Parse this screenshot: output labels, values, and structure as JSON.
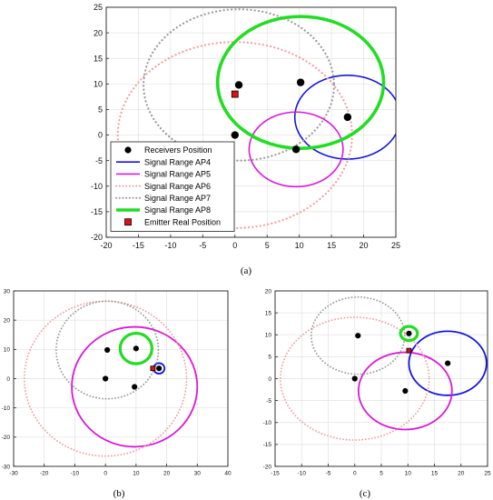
{
  "figure": {
    "captions": [
      "(a)",
      "(b)",
      "(c)"
    ]
  },
  "legend": {
    "entries": [
      {
        "label": "Receivers Position",
        "kind": "dot",
        "color": "#000000"
      },
      {
        "label": "Signal Range AP4",
        "kind": "line",
        "color": "#1515e0"
      },
      {
        "label": "Signal Range AP5",
        "kind": "line",
        "color": "#d81ad8"
      },
      {
        "label": "Signal Range AP6",
        "kind": "dotted",
        "color": "#f0a0a0"
      },
      {
        "label": "Signal Range AP7",
        "kind": "dotted",
        "color": "#9a9a9a"
      },
      {
        "label": "Signal Range AP8",
        "kind": "thick",
        "color": "#22dd22"
      },
      {
        "label": "Emitter Real Position",
        "kind": "square",
        "color": "#dd1111"
      }
    ]
  },
  "chart_data": [
    {
      "type": "scatter",
      "panel": "a",
      "title": "",
      "xlabel": "",
      "ylabel": "",
      "xlim": [
        -20,
        25
      ],
      "ylim": [
        -20,
        25
      ],
      "xticks": [
        -20,
        -15,
        -10,
        -5,
        0,
        5,
        10,
        15,
        20,
        25
      ],
      "yticks": [
        -20,
        -15,
        -10,
        -5,
        0,
        5,
        10,
        15,
        20,
        25
      ],
      "grid": true,
      "legend_position": "bottom-left",
      "receivers": [
        [
          0,
          0
        ],
        [
          0.6,
          9.8
        ],
        [
          10.2,
          10.3
        ],
        [
          17.5,
          3.5
        ],
        [
          9.5,
          -2.8
        ]
      ],
      "emitter": [
        0,
        8
      ],
      "circles": [
        {
          "name": "Signal Range AP4",
          "cx": 17.5,
          "cy": 3.5,
          "r": 8.2,
          "color": "#1515e0",
          "style": "solid"
        },
        {
          "name": "Signal Range AP5",
          "cx": 9.5,
          "cy": -2.8,
          "r": 7.3,
          "color": "#d81ad8",
          "style": "solid"
        },
        {
          "name": "Signal Range AP6",
          "cx": 0,
          "cy": 0,
          "r": 18.2,
          "color": "#f0a0a0",
          "style": "dotted"
        },
        {
          "name": "Signal Range AP7",
          "cx": 0.6,
          "cy": 9.8,
          "r": 14.8,
          "color": "#9a9a9a",
          "style": "dotted"
        },
        {
          "name": "Signal Range AP8",
          "cx": 10.2,
          "cy": 10.3,
          "r": 12.9,
          "color": "#22dd22",
          "style": "thick"
        }
      ]
    },
    {
      "type": "scatter",
      "panel": "b",
      "title": "",
      "xlabel": "",
      "ylabel": "",
      "xlim": [
        -30,
        40
      ],
      "ylim": [
        -30,
        30
      ],
      "xticks": [
        -30,
        -20,
        -10,
        0,
        10,
        20,
        30,
        40
      ],
      "yticks": [
        -30,
        -20,
        -10,
        0,
        10,
        20,
        30
      ],
      "grid": true,
      "receivers": [
        [
          0.6,
          9.8
        ],
        [
          10,
          10.3
        ],
        [
          0,
          0
        ],
        [
          9.5,
          -2.8
        ],
        [
          17.5,
          3.5
        ]
      ],
      "emitter": [
        15.5,
        3.5
      ],
      "circles": [
        {
          "name": "Signal Range AP4",
          "cx": 17.5,
          "cy": 3.5,
          "r": 1.8,
          "color": "#1515e0",
          "style": "solid"
        },
        {
          "name": "Signal Range AP5",
          "cx": 9.5,
          "cy": -2.8,
          "r": 20.5,
          "color": "#d81ad8",
          "style": "solid"
        },
        {
          "name": "Signal Range AP6",
          "cx": 0,
          "cy": 0,
          "r": 26.5,
          "color": "#f0a0a0",
          "style": "dotted"
        },
        {
          "name": "Signal Range AP7",
          "cx": 0.6,
          "cy": 9.8,
          "r": 16.7,
          "color": "#9a9a9a",
          "style": "dotted"
        },
        {
          "name": "Signal Range AP8",
          "cx": 10,
          "cy": 10.3,
          "r": 5.2,
          "color": "#22dd22",
          "style": "thick"
        }
      ]
    },
    {
      "type": "scatter",
      "panel": "c",
      "title": "",
      "xlabel": "",
      "ylabel": "",
      "xlim": [
        -15,
        25
      ],
      "ylim": [
        -20,
        20
      ],
      "xticks": [
        -15,
        -10,
        -5,
        0,
        5,
        10,
        15,
        20,
        25
      ],
      "yticks": [
        -20,
        -15,
        -10,
        -5,
        0,
        5,
        10,
        15,
        20
      ],
      "grid": true,
      "receivers": [
        [
          0.6,
          9.8
        ],
        [
          10.2,
          10.3
        ],
        [
          0,
          0
        ],
        [
          9.5,
          -2.8
        ],
        [
          17.5,
          3.5
        ]
      ],
      "emitter": [
        10.2,
        6.4
      ],
      "circles": [
        {
          "name": "Signal Range AP4",
          "cx": 17.5,
          "cy": 3.5,
          "r": 7.3,
          "color": "#1515e0",
          "style": "solid"
        },
        {
          "name": "Signal Range AP5",
          "cx": 9.5,
          "cy": -2.8,
          "r": 8.8,
          "color": "#d81ad8",
          "style": "solid"
        },
        {
          "name": "Signal Range AP6",
          "cx": 0,
          "cy": 0,
          "r": 14,
          "color": "#f0a0a0",
          "style": "dotted"
        },
        {
          "name": "Signal Range AP7",
          "cx": 0.6,
          "cy": 9.8,
          "r": 8.8,
          "color": "#9a9a9a",
          "style": "dotted"
        },
        {
          "name": "Signal Range AP8",
          "cx": 10.2,
          "cy": 10.3,
          "r": 1.6,
          "color": "#22dd22",
          "style": "thick"
        }
      ]
    }
  ]
}
